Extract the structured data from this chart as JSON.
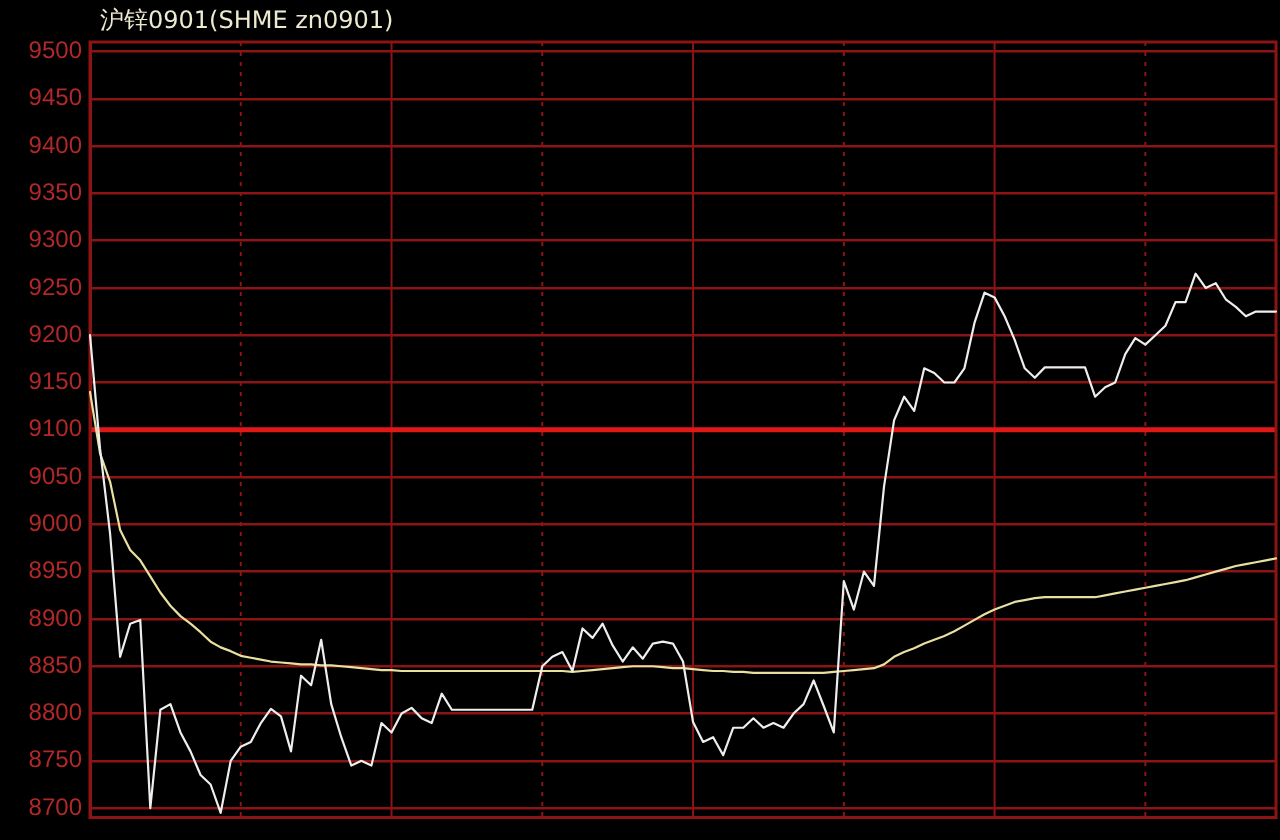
{
  "chart_data": {
    "type": "line",
    "title": "沪锌0901(SHME zn0901)",
    "categories": [
      null,
      null,
      null,
      null,
      null,
      null,
      null,
      null,
      null,
      null,
      null,
      null,
      null,
      null,
      null,
      null,
      null,
      null,
      null,
      null,
      null,
      null,
      null,
      null,
      null,
      null,
      null,
      null,
      null,
      null,
      null,
      null,
      null,
      null,
      null,
      null,
      null,
      null,
      null,
      null,
      null,
      null,
      null,
      null,
      null,
      null,
      null,
      null,
      null,
      null,
      null,
      null,
      null,
      null,
      null,
      null,
      null,
      null,
      null,
      null,
      null,
      null,
      null,
      null,
      null,
      null,
      null,
      null,
      null,
      null,
      null,
      null,
      null,
      null,
      null,
      null,
      null,
      null,
      null,
      null,
      null,
      null,
      null,
      null,
      null,
      null,
      null,
      null,
      null,
      null,
      null,
      null,
      null,
      null,
      null,
      null,
      null,
      null,
      null,
      null,
      null,
      null,
      null,
      null,
      null,
      null,
      null,
      null,
      null,
      null,
      null,
      null,
      null,
      null,
      null,
      null,
      null,
      null,
      null
    ],
    "series": [
      {
        "color": "#eeeeee",
        "values": [
          9200,
          9080,
          8990,
          8860,
          8895,
          8899,
          8700,
          8804,
          8810,
          8780,
          8760,
          8735,
          8725,
          8695,
          8750,
          8765,
          8770,
          8790,
          8805,
          8797,
          8760,
          8840,
          8830,
          8878,
          8810,
          8775,
          8745,
          8750,
          8745,
          8790,
          8780,
          8800,
          8806,
          8795,
          8790,
          8821,
          8804,
          8804,
          8804,
          8804,
          8804,
          8804,
          8804,
          8804,
          8804,
          8850,
          8860,
          8865,
          8845,
          8890,
          8880,
          8895,
          8872,
          8855,
          8870,
          8858,
          8874,
          8876,
          8874,
          8855,
          8791,
          8770,
          8775,
          8756,
          8785,
          8785,
          8795,
          8785,
          8790,
          8785,
          8800,
          8810,
          8835,
          8808,
          8780,
          8940,
          8910,
          8950,
          8935,
          9040,
          9110,
          9135,
          9120,
          9165,
          9160,
          9150,
          9150,
          9165,
          9213,
          9245,
          9240,
          9220,
          9195,
          9165,
          9155,
          9166,
          9166,
          9166,
          9166,
          9166,
          9135,
          9145,
          9150,
          9180,
          9197,
          9190,
          9200,
          9210,
          9235,
          9235,
          9265,
          9250,
          9255,
          9238,
          9230,
          9220,
          9225,
          9225,
          9225
        ]
      },
      {
        "color": "#e8e0a0",
        "values": [
          9140,
          9075,
          9045,
          8994,
          8973,
          8962,
          8945,
          8928,
          8914,
          8903,
          8895,
          8886,
          8876,
          8870,
          8866,
          8861,
          8859,
          8857,
          8855,
          8854,
          8853,
          8852,
          8852,
          8851,
          8851,
          8850,
          8849,
          8848,
          8847,
          8846,
          8846,
          8845,
          8845,
          8845,
          8845,
          8845,
          8845,
          8845,
          8845,
          8845,
          8845,
          8845,
          8845,
          8845,
          8845,
          8845,
          8845,
          8845,
          8844,
          8845,
          8846,
          8847,
          8848,
          8849,
          8850,
          8850,
          8850,
          8849,
          8848,
          8848,
          8847,
          8846,
          8845,
          8845,
          8844,
          8844,
          8843,
          8843,
          8843,
          8843,
          8843,
          8843,
          8843,
          8843,
          8844,
          8845,
          8846,
          8847,
          8848,
          8852,
          8860,
          8865,
          8869,
          8874,
          8878,
          8882,
          8887,
          8893,
          8899,
          8905,
          8910,
          8914,
          8918,
          8920,
          8922,
          8923,
          8923,
          8923,
          8923,
          8923,
          8923,
          8925,
          8927,
          8929,
          8931,
          8933,
          8935,
          8937,
          8939,
          8941,
          8944,
          8947,
          8950,
          8953,
          8956,
          8958,
          8960,
          8962,
          8964
        ]
      }
    ],
    "ylim": [
      8690,
      9510
    ],
    "yticks": [
      8700,
      8750,
      8800,
      8850,
      8900,
      8950,
      9000,
      9050,
      9100,
      9150,
      9200,
      9250,
      9300,
      9350,
      9400,
      9450,
      9500
    ],
    "ref_lines": [
      {
        "axis": "y",
        "value": 9100,
        "color": "#e01818"
      }
    ],
    "grid": true,
    "tick_labels": "y",
    "marker": "none"
  }
}
